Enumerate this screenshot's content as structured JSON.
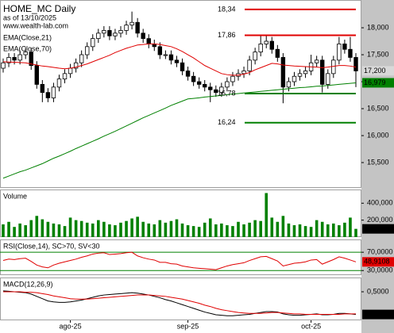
{
  "chart_data": [
    {
      "type": "candlestick",
      "title": "HOME_MC Daily",
      "subtitle": "as of 13/10/2025",
      "source": "www.wealth-lab.com",
      "categories": [
        null,
        null,
        null,
        null,
        null,
        null,
        null,
        null,
        null,
        null,
        null,
        null,
        "ago-25",
        null,
        null,
        null,
        null,
        null,
        null,
        null,
        null,
        null,
        null,
        null,
        null,
        null,
        null,
        null,
        null,
        null,
        null,
        null,
        null,
        "sep-25",
        null,
        null,
        null,
        null,
        null,
        null,
        null,
        null,
        null,
        null,
        null,
        null,
        null,
        null,
        null,
        null,
        null,
        null,
        null,
        null,
        null,
        "oct-25",
        null,
        null,
        null,
        null,
        null,
        null,
        null,
        null
      ],
      "open": [
        17250,
        17350,
        17450,
        17400,
        17500,
        17550,
        17300,
        16950,
        16800,
        16700,
        16900,
        17050,
        17150,
        17250,
        17350,
        17500,
        17650,
        17800,
        17900,
        17950,
        17850,
        17900,
        17950,
        18050,
        18100,
        17900,
        17800,
        17700,
        17650,
        17500,
        17500,
        17400,
        17350,
        17200,
        17100,
        17000,
        16950,
        16900,
        16850,
        16800,
        16900,
        17000,
        17100,
        17150,
        17200,
        17400,
        17550,
        17700,
        17750,
        17600,
        17450,
        16900,
        17000,
        17100,
        17150,
        17200,
        17350,
        17400,
        16950,
        17150,
        17400,
        17700,
        17600,
        17450
      ],
      "high": [
        17430,
        17530,
        17530,
        17580,
        17630,
        17630,
        17380,
        17030,
        16880,
        16980,
        17130,
        17230,
        17330,
        17430,
        17580,
        17730,
        17880,
        17980,
        18030,
        18030,
        17980,
        18030,
        18130,
        18300,
        18180,
        17980,
        17880,
        17780,
        17730,
        17580,
        17580,
        17480,
        17430,
        17280,
        17180,
        17080,
        17030,
        16980,
        16930,
        16980,
        17080,
        17180,
        17230,
        17280,
        17480,
        17630,
        17850,
        17860,
        17830,
        17680,
        17530,
        17080,
        17180,
        17230,
        17280,
        17500,
        17480,
        17480,
        17230,
        17480,
        17830,
        17780,
        17830,
        17530
      ],
      "low": [
        17170,
        17270,
        17320,
        17320,
        17420,
        17220,
        16870,
        16620,
        16620,
        16620,
        16820,
        16970,
        17070,
        17170,
        17270,
        17420,
        17570,
        17720,
        17820,
        17770,
        17770,
        17820,
        17870,
        17970,
        17820,
        17720,
        17620,
        17570,
        17420,
        17420,
        17320,
        17270,
        17120,
        17020,
        16920,
        16870,
        16820,
        16620,
        16720,
        16720,
        16820,
        16920,
        17020,
        17070,
        17120,
        17320,
        17470,
        17620,
        17520,
        17370,
        16600,
        16820,
        16920,
        17020,
        17070,
        17120,
        17270,
        16800,
        16870,
        17070,
        17320,
        17520,
        17370,
        16900
      ],
      "close": [
        17350,
        17450,
        17400,
        17500,
        17550,
        17300,
        16950,
        16800,
        16700,
        16900,
        17050,
        17150,
        17250,
        17350,
        17500,
        17650,
        17800,
        17900,
        17950,
        17850,
        17900,
        17950,
        18050,
        18100,
        17900,
        17800,
        17700,
        17650,
        17500,
        17500,
        17400,
        17350,
        17200,
        17100,
        17000,
        16950,
        16900,
        16850,
        16800,
        16900,
        17000,
        17100,
        17150,
        17200,
        17400,
        17550,
        17700,
        17750,
        17600,
        17450,
        16900,
        17000,
        17100,
        17150,
        17200,
        17350,
        17400,
        16950,
        17150,
        17400,
        17700,
        17600,
        17450,
        17200
      ],
      "close_labels": [
        null,
        null,
        null,
        null,
        null,
        null,
        null,
        null,
        null,
        null,
        null,
        null,
        null,
        null,
        null,
        null,
        null,
        null,
        null,
        null,
        null,
        null,
        null,
        null,
        null,
        null,
        null,
        null,
        null,
        null,
        null,
        null,
        null,
        null,
        null,
        null,
        null,
        null,
        null,
        null,
        null,
        null,
        null,
        null,
        null,
        null,
        null,
        null,
        null,
        null,
        null,
        null,
        null,
        null,
        null,
        null,
        null,
        null,
        null,
        null,
        null,
        null,
        null,
        "17,200"
      ],
      "close_label_color": "#d8d8d8",
      "up_color": "#ffffff",
      "down_color": "#000000",
      "ylim": [
        15030,
        18515
      ],
      "yticks": [
        {
          "value": 15500,
          "label": "15,500"
        },
        {
          "value": 16000,
          "label": "16,000"
        },
        {
          "value": 16500,
          "label": "16,500"
        },
        {
          "value": 17000,
          "label": "17,000"
        },
        {
          "value": 17500,
          "label": "17,500"
        },
        {
          "value": 18000,
          "label": "18,000"
        }
      ],
      "levels": [
        {
          "value": 18340,
          "label": "18,34",
          "color": "#e00000"
        },
        {
          "value": 17860,
          "label": "17,86",
          "color": "#e00000"
        },
        {
          "value": 16780,
          "label": "16,78",
          "color": "#008000"
        },
        {
          "value": 16240,
          "label": "16,24",
          "color": "#008000"
        }
      ],
      "series": [
        {
          "name": "EMA(Close,21)",
          "color": "#e00000",
          "values": [
            17370,
            17365,
            17360,
            17355,
            17350,
            17330,
            17310,
            17290,
            17280,
            17265,
            17250,
            17240,
            17250,
            17270,
            17300,
            17330,
            17370,
            17410,
            17450,
            17490,
            17540,
            17580,
            17620,
            17650,
            17680,
            17690,
            17700,
            17700,
            17690,
            17670,
            17650,
            17610,
            17560,
            17500,
            17440,
            17370,
            17300,
            17250,
            17200,
            17150,
            17130,
            17120,
            17120,
            17140,
            17170,
            17220,
            17260,
            17300,
            17340,
            17330,
            17310,
            17300,
            17290,
            17285,
            17280,
            17275,
            17270,
            17260,
            17270,
            17285,
            17300,
            17300,
            17290,
            17270
          ]
        },
        {
          "name": "EMA(Close,70)",
          "color": "#008000",
          "values": [
            15210,
            15250,
            15290,
            15330,
            15360,
            15400,
            15440,
            15480,
            15530,
            15580,
            15620,
            15665,
            15710,
            15760,
            15805,
            15850,
            15895,
            15940,
            15990,
            16035,
            16080,
            16130,
            16180,
            16230,
            16280,
            16330,
            16375,
            16420,
            16465,
            16510,
            16560,
            16600,
            16640,
            16680,
            16690,
            16700,
            16715,
            16725,
            16735,
            16745,
            16760,
            16770,
            16780,
            16790,
            16800,
            16810,
            16820,
            16830,
            16840,
            16850,
            16860,
            16870,
            16880,
            16890,
            16895,
            16905,
            16915,
            16920,
            16930,
            16940,
            16950,
            16960,
            16970,
            16979
          ],
          "value_labels": [
            null,
            null,
            null,
            null,
            null,
            null,
            null,
            null,
            null,
            null,
            null,
            null,
            null,
            null,
            null,
            null,
            null,
            null,
            null,
            null,
            null,
            null,
            null,
            null,
            null,
            null,
            null,
            null,
            null,
            null,
            null,
            null,
            null,
            null,
            null,
            null,
            null,
            null,
            null,
            null,
            null,
            null,
            null,
            null,
            null,
            null,
            null,
            null,
            null,
            null,
            null,
            null,
            null,
            null,
            null,
            null,
            null,
            null,
            null,
            null,
            null,
            null,
            null,
            "16,979"
          ]
        }
      ]
    },
    {
      "type": "bar",
      "title": "Volume",
      "color": "#008000",
      "values": [
        150000,
        180000,
        120000,
        160000,
        140000,
        200000,
        250000,
        210000,
        180000,
        160000,
        150000,
        130000,
        230000,
        200000,
        190000,
        170000,
        160000,
        200000,
        180000,
        150000,
        140000,
        170000,
        190000,
        220000,
        240000,
        180000,
        160000,
        150000,
        200000,
        170000,
        190000,
        210000,
        160000,
        140000,
        130000,
        120000,
        170000,
        220000,
        150000,
        160000,
        140000,
        130000,
        180000,
        150000,
        170000,
        200000,
        190000,
        520000,
        230000,
        180000,
        250000,
        160000,
        140000,
        150000,
        130000,
        120000,
        200000,
        180000,
        150000,
        160000,
        140000,
        170000,
        230000,
        96930
      ],
      "value_labels": [
        null,
        null,
        null,
        null,
        null,
        null,
        null,
        null,
        null,
        null,
        null,
        null,
        null,
        null,
        null,
        null,
        null,
        null,
        null,
        null,
        null,
        null,
        null,
        null,
        null,
        null,
        null,
        null,
        null,
        null,
        null,
        null,
        null,
        null,
        null,
        null,
        null,
        null,
        null,
        null,
        null,
        null,
        null,
        null,
        null,
        null,
        null,
        null,
        null,
        null,
        null,
        null,
        null,
        null,
        null,
        null,
        null,
        null,
        null,
        null,
        null,
        null,
        null,
        "96,930"
      ],
      "label_color": "#000000",
      "ylim": [
        0,
        562000
      ],
      "yticks": [
        {
          "value": 200000,
          "label": "200,000"
        },
        {
          "value": 400000,
          "label": "400,000"
        }
      ]
    },
    {
      "type": "line",
      "title": "RSI(Close,14), SC>70, SV<30",
      "grid": true,
      "grid_color": "#008000",
      "ylim": [
        20,
        98
      ],
      "yticks": [
        {
          "value": 30,
          "label": "30,0000"
        },
        {
          "value": 70,
          "label": "70,0000"
        }
      ],
      "series": [
        {
          "color": "#e00000",
          "values": [
            52,
            55,
            54,
            56,
            57,
            50,
            42,
            38,
            36,
            42,
            46,
            49,
            52,
            55,
            59,
            62,
            66,
            68,
            69,
            65,
            66,
            67,
            69,
            70,
            62,
            58,
            55,
            53,
            48,
            48,
            45,
            44,
            40,
            38,
            36,
            35,
            34,
            33,
            32,
            36,
            40,
            43,
            45,
            47,
            52,
            56,
            60,
            61,
            56,
            51,
            40,
            43,
            46,
            47,
            49,
            53,
            54,
            44,
            49,
            54,
            60,
            57,
            53,
            48.9108
          ],
          "value_labels": [
            null,
            null,
            null,
            null,
            null,
            null,
            null,
            null,
            null,
            null,
            null,
            null,
            null,
            null,
            null,
            null,
            null,
            null,
            null,
            null,
            null,
            null,
            null,
            null,
            null,
            null,
            null,
            null,
            null,
            null,
            null,
            null,
            null,
            null,
            null,
            null,
            null,
            null,
            null,
            null,
            null,
            null,
            null,
            null,
            null,
            null,
            null,
            null,
            null,
            null,
            null,
            null,
            null,
            null,
            null,
            null,
            null,
            null,
            null,
            null,
            null,
            null,
            null,
            "48,9108"
          ]
        }
      ]
    },
    {
      "type": "line",
      "title": "MACD(12,26,9)",
      "grid": false,
      "ylim": [
        -0.12,
        0.81
      ],
      "yticks": [
        {
          "value": 0.5,
          "label": "0,5000"
        }
      ],
      "series": [
        {
          "color": "#000000",
          "values": [
            0.52,
            0.51,
            0.5,
            0.49,
            0.48,
            0.45,
            0.4,
            0.35,
            0.3,
            0.28,
            0.27,
            0.27,
            0.28,
            0.3,
            0.32,
            0.35,
            0.38,
            0.41,
            0.43,
            0.44,
            0.45,
            0.46,
            0.47,
            0.48,
            0.47,
            0.45,
            0.43,
            0.4,
            0.37,
            0.33,
            0.3,
            0.26,
            0.22,
            0.18,
            0.14,
            0.1,
            0.06,
            0.03,
            0,
            -0.01,
            -0.02,
            -0.02,
            -0.01,
            0,
            0.01,
            0.03,
            0.05,
            0.07,
            0.07,
            0.06,
            0.02,
            0,
            -0.01,
            -0.01,
            0,
            0.01,
            0.02,
            0,
            0,
            0.01,
            0.03,
            0.03,
            0.02,
            0.0071
          ],
          "value_labels": [
            null,
            null,
            null,
            null,
            null,
            null,
            null,
            null,
            null,
            null,
            null,
            null,
            null,
            null,
            null,
            null,
            null,
            null,
            null,
            null,
            null,
            null,
            null,
            null,
            null,
            null,
            null,
            null,
            null,
            null,
            null,
            null,
            null,
            null,
            null,
            null,
            null,
            null,
            null,
            null,
            null,
            null,
            null,
            null,
            null,
            null,
            null,
            null,
            null,
            null,
            null,
            null,
            null,
            null,
            null,
            null,
            null,
            null,
            null,
            null,
            null,
            null,
            null,
            "0,0071"
          ]
        },
        {
          "color": "#e00000",
          "values": [
            0.5,
            0.5,
            0.5,
            0.5,
            0.49,
            0.49,
            0.48,
            0.46,
            0.44,
            0.41,
            0.39,
            0.37,
            0.35,
            0.34,
            0.34,
            0.34,
            0.35,
            0.36,
            0.37,
            0.38,
            0.39,
            0.4,
            0.41,
            0.42,
            0.43,
            0.43,
            0.43,
            0.42,
            0.41,
            0.4,
            0.38,
            0.36,
            0.34,
            0.31,
            0.28,
            0.25,
            0.21,
            0.18,
            0.14,
            0.11,
            0.09,
            0.07,
            0.05,
            0.04,
            0.03,
            0.03,
            0.03,
            0.04,
            0.05,
            0.05,
            0.04,
            0.03,
            0.02,
            0.02,
            0.01,
            0.01,
            0.01,
            0.01,
            0.01,
            0.01,
            0.01,
            0.02,
            0.02,
            0.02
          ]
        }
      ]
    }
  ]
}
